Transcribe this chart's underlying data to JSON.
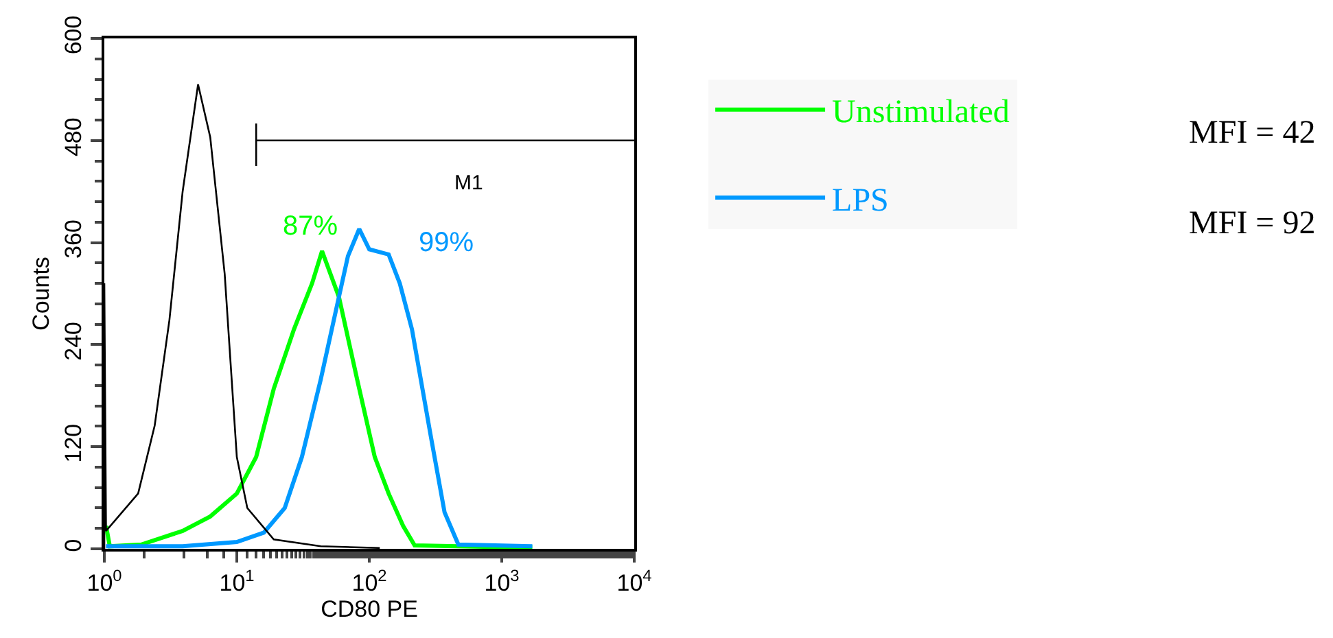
{
  "chart_data": {
    "type": "line",
    "xlabel": "CD80 PE",
    "ylabel": "Counts",
    "log": "x",
    "xlim": [
      1,
      10000
    ],
    "ylim": [
      0,
      600
    ],
    "xticks": [
      {
        "value": 1,
        "label": "10$^{0}$"
      },
      {
        "value": 10,
        "label": "10$^{1}$"
      },
      {
        "value": 100,
        "label": "10$^{2}$"
      },
      {
        "value": 1000,
        "label": "10$^{3}$"
      },
      {
        "value": 10000,
        "label": "10$^{4}$"
      }
    ],
    "yticks": [
      0,
      120,
      240,
      360,
      480,
      600
    ],
    "legend": "right",
    "marker": "none",
    "line_style": "solid",
    "series": [
      {
        "name": "Unstimulated",
        "color": "#00ff00",
        "x": [
          1.03,
          1.1,
          1.9,
          3.9,
          6.3,
          10,
          14,
          19,
          27,
          37,
          44,
          59,
          81,
          110,
          140,
          180,
          220,
          1000,
          1700
        ],
        "values": [
          27,
          3,
          5,
          21,
          38,
          65,
          108,
          188,
          258,
          312,
          350,
          296,
          199,
          108,
          65,
          27,
          4,
          2,
          2
        ]
      },
      {
        "name": "LPS",
        "color": "#0099ff",
        "x": [
          1.03,
          3.9,
          10,
          16,
          23,
          31,
          43,
          54,
          69,
          84,
          100,
          140,
          170,
          210,
          290,
          370,
          470,
          1700
        ],
        "values": [
          3,
          3,
          8,
          19,
          48,
          108,
          199,
          269,
          344,
          376,
          352,
          346,
          312,
          258,
          134,
          43,
          5,
          3
        ]
      },
      {
        "color": "#000000",
        "x": [
          1,
          1,
          1.03,
          1.8,
          2.4,
          3.1,
          3.9,
          5.1,
          6.3,
          8.1,
          10,
          12,
          19,
          43,
          120
        ],
        "values": [
          0,
          312,
          21,
          65,
          145,
          269,
          420,
          546,
          484,
          323,
          108,
          48,
          11,
          3,
          1
        ]
      },
      {
        "color": "#000000",
        "x": [
          14,
          14,
          14,
          10000
        ],
        "values": [
          450,
          500,
          480,
          480
        ]
      }
    ],
    "annotations": [
      "87%",
      "99%",
      "M1",
      "MFI = 42",
      "MFI = 92"
    ]
  }
}
